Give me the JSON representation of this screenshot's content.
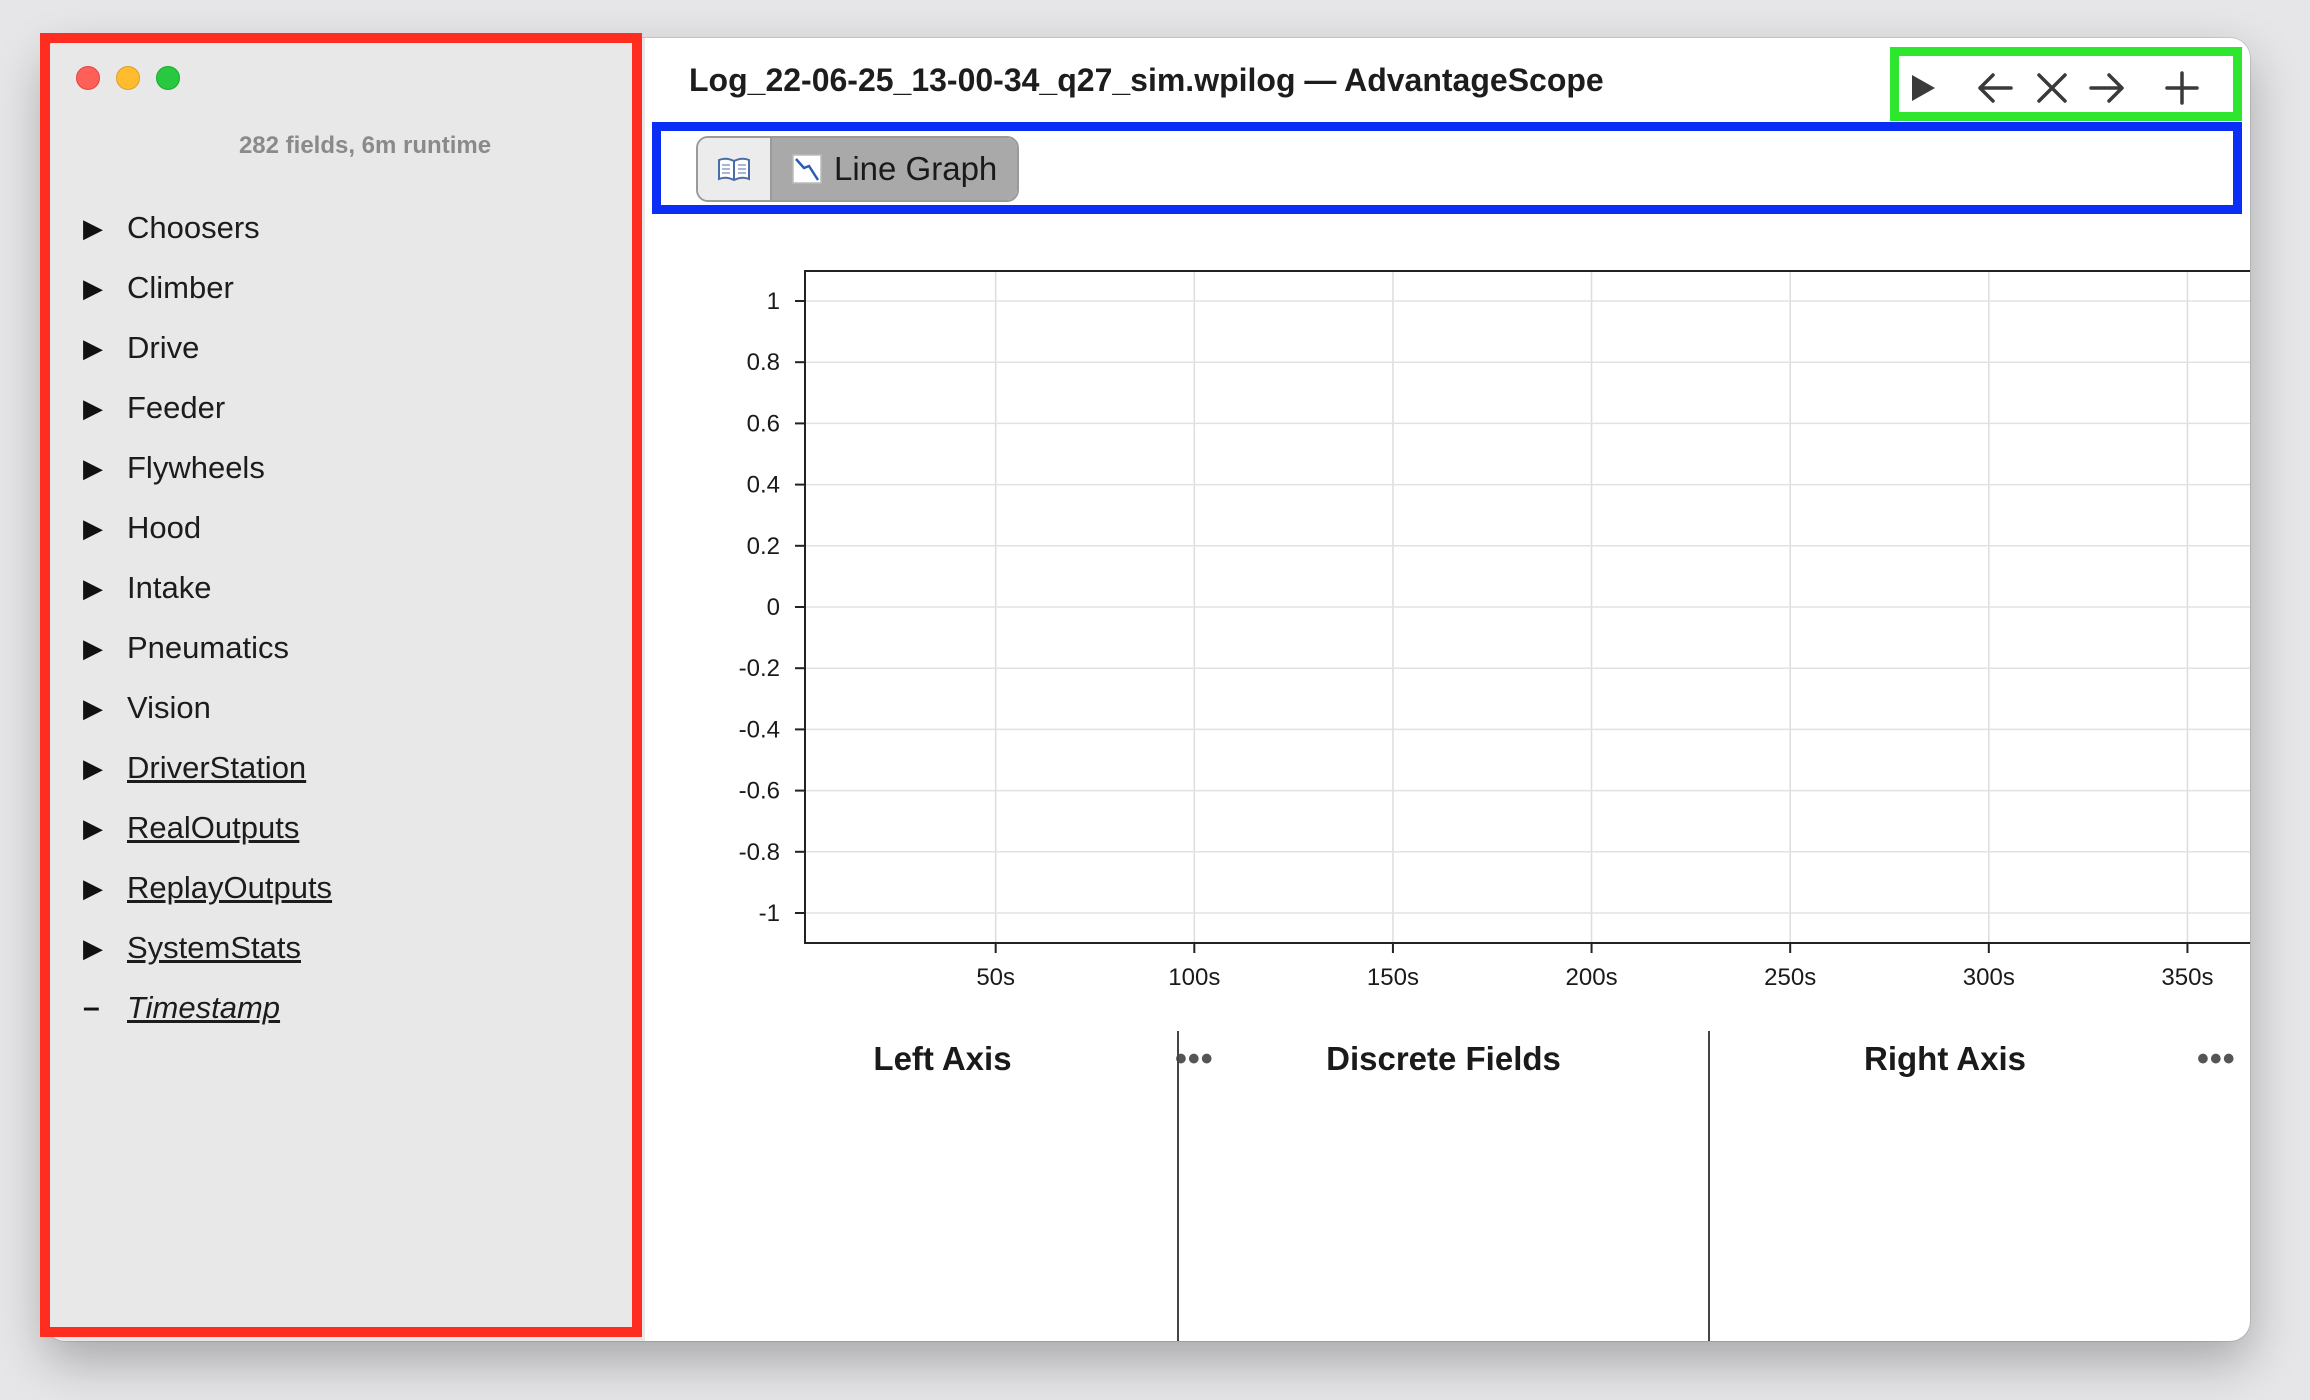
{
  "window": {
    "title": "Log_22-06-25_13-00-34_q27_sim.wpilog — AdvantageScope"
  },
  "sidebar": {
    "summary": "282 fields, 6m runtime",
    "items": [
      {
        "label": "Choosers",
        "style": "normal"
      },
      {
        "label": "Climber",
        "style": "normal"
      },
      {
        "label": "Drive",
        "style": "normal"
      },
      {
        "label": "Feeder",
        "style": "normal"
      },
      {
        "label": "Flywheels",
        "style": "normal"
      },
      {
        "label": "Hood",
        "style": "normal"
      },
      {
        "label": "Intake",
        "style": "normal"
      },
      {
        "label": "Pneumatics",
        "style": "normal"
      },
      {
        "label": "Vision",
        "style": "normal"
      },
      {
        "label": "DriverStation",
        "style": "underlined"
      },
      {
        "label": "RealOutputs",
        "style": "underlined"
      },
      {
        "label": "ReplayOutputs",
        "style": "underlined"
      },
      {
        "label": "SystemStats",
        "style": "underlined"
      },
      {
        "label": "Timestamp",
        "style": "italic"
      }
    ]
  },
  "toolbar": {
    "icons": [
      "play-icon",
      "arrow-left-icon",
      "close-icon",
      "arrow-right-icon",
      "plus-icon"
    ]
  },
  "tabs": {
    "docs_icon": "book-icon",
    "active_label": "Line Graph",
    "active_icon": "line-graph-icon"
  },
  "chart_data": {
    "type": "line",
    "series": [],
    "title": "",
    "xlabel": "",
    "ylabel": "",
    "ylim": [
      -1,
      1
    ],
    "y_ticks": [
      "1",
      "0.8",
      "0.6",
      "0.4",
      "0.2",
      "0",
      "-0.2",
      "-0.4",
      "-0.6",
      "-0.8",
      "-1"
    ],
    "x_ticks": [
      "50s",
      "100s",
      "150s",
      "200s",
      "250s",
      "300s",
      "350s"
    ],
    "xlim": [
      2,
      366
    ],
    "grid": true
  },
  "panels": {
    "left": {
      "title": "Left Axis",
      "menu": "•••"
    },
    "discrete": {
      "title": "Discrete Fields"
    },
    "right": {
      "title": "Right Axis",
      "menu": "•••"
    }
  },
  "colors": {
    "highlight_sidebar": "#ff2d20",
    "highlight_tabs": "#0a2ef5",
    "highlight_toolbar": "#2ee62e"
  }
}
